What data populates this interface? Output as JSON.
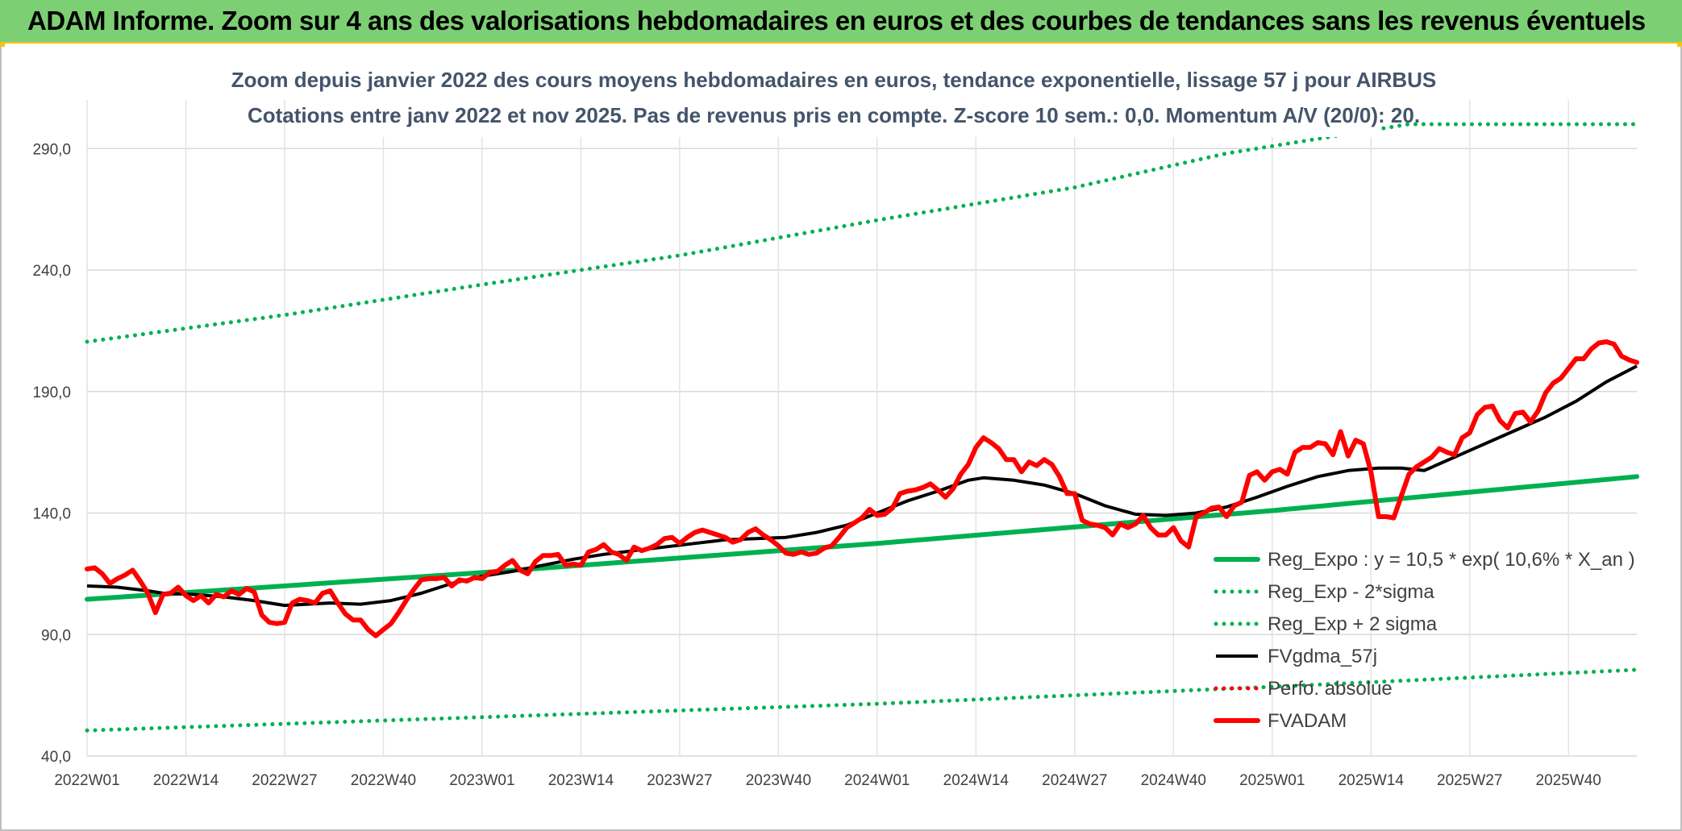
{
  "banner": {
    "title": "ADAM Informe. Zoom sur 4 ans des valorisations hebdomadaires en euros et des courbes de tendances sans les revenus éventuels"
  },
  "colors": {
    "banner_bg": "#7dcf74",
    "banner_border": "#f0c419",
    "regression": "#00b050",
    "band": "#00b050",
    "smoothed": "#000000",
    "perf": "#ff0000",
    "price": "#ff0000",
    "title": "#44546a"
  },
  "chart_data": {
    "type": "line",
    "title_line1": "Zoom depuis janvier 2022 des cours moyens hebdomadaires en euros, tendance exponentielle, lissage 57 j pour AIRBUS",
    "title_line2": "Cotations entre janv 2022 et nov 2025. Pas de revenus pris en compte. Z-score 10 sem.: 0,0. Momentum A/V (20/0): 20.",
    "xlabel": "",
    "ylabel": "",
    "ylim": [
      40,
      300
    ],
    "grid": true,
    "legend_position": "bottom-right",
    "y_ticks": [
      "40,0",
      "90,0",
      "140,0",
      "190,0",
      "240,0",
      "290,0"
    ],
    "x_ticks": [
      {
        "label": "2022W01",
        "week": 0
      },
      {
        "label": "2022W14",
        "week": 13
      },
      {
        "label": "2022W27",
        "week": 26
      },
      {
        "label": "2022W40",
        "week": 39
      },
      {
        "label": "2023W01",
        "week": 52
      },
      {
        "label": "2023W14",
        "week": 65
      },
      {
        "label": "2023W27",
        "week": 78
      },
      {
        "label": "2023W40",
        "week": 91
      },
      {
        "label": "2024W01",
        "week": 104
      },
      {
        "label": "2024W14",
        "week": 117
      },
      {
        "label": "2024W27",
        "week": 130
      },
      {
        "label": "2024W40",
        "week": 143
      },
      {
        "label": "2025W01",
        "week": 156
      },
      {
        "label": "2025W14",
        "week": 169
      },
      {
        "label": "2025W27",
        "week": 182
      },
      {
        "label": "2025W40",
        "week": 195
      }
    ],
    "x_max_week": 204,
    "series": [
      {
        "name": "Reg_Expo : y = 10,5 * exp( 10,6% *  X_an )",
        "style": "solid-thick",
        "color": "#00b050",
        "points": [
          [
            0,
            104.5
          ],
          [
            52,
            115.5
          ],
          [
            104,
            127.5
          ],
          [
            156,
            141.0
          ],
          [
            204,
            155.0
          ]
        ]
      },
      {
        "name": "Reg_Exp - 2*sigma",
        "style": "dotted",
        "color": "#00b050",
        "points": [
          [
            0,
            50.5
          ],
          [
            52,
            56.0
          ],
          [
            104,
            61.5
          ],
          [
            156,
            68.5
          ],
          [
            204,
            75.5
          ]
        ]
      },
      {
        "name": "Reg_Exp + 2 sigma",
        "style": "dotted",
        "color": "#00b050",
        "points": [
          [
            0,
            210.5
          ],
          [
            26,
            221.5
          ],
          [
            52,
            234.0
          ],
          [
            78,
            246.0
          ],
          [
            104,
            260.5
          ],
          [
            130,
            274.0
          ],
          [
            150,
            288.0
          ],
          [
            156,
            291.0
          ],
          [
            174,
            300.0
          ],
          [
            204,
            300.0
          ]
        ]
      },
      {
        "name": "FVgdma_57j",
        "style": "solid",
        "color": "#000000",
        "points": [
          [
            0,
            110
          ],
          [
            4,
            109.5
          ],
          [
            8,
            108
          ],
          [
            10,
            107
          ],
          [
            14,
            106.5
          ],
          [
            18,
            105.5
          ],
          [
            22,
            104
          ],
          [
            26,
            102
          ],
          [
            32,
            103
          ],
          [
            36,
            102.5
          ],
          [
            40,
            104
          ],
          [
            44,
            107
          ],
          [
            48,
            111
          ],
          [
            52,
            114
          ],
          [
            56,
            116
          ],
          [
            60,
            118.5
          ],
          [
            64,
            121
          ],
          [
            68,
            123
          ],
          [
            72,
            124.5
          ],
          [
            76,
            126
          ],
          [
            80,
            127.5
          ],
          [
            84,
            129
          ],
          [
            88,
            129.5
          ],
          [
            92,
            130
          ],
          [
            96,
            132
          ],
          [
            100,
            135
          ],
          [
            104,
            140
          ],
          [
            108,
            145
          ],
          [
            112,
            149
          ],
          [
            116,
            153.5
          ],
          [
            118,
            154.5
          ],
          [
            122,
            153.5
          ],
          [
            126,
            151.5
          ],
          [
            130,
            148
          ],
          [
            134,
            143
          ],
          [
            138,
            139.5
          ],
          [
            142,
            139
          ],
          [
            146,
            140
          ],
          [
            150,
            142.5
          ],
          [
            154,
            146.5
          ],
          [
            158,
            151
          ],
          [
            162,
            155
          ],
          [
            166,
            157.5
          ],
          [
            170,
            158.5
          ],
          [
            173,
            158.5
          ],
          [
            176,
            157.5
          ],
          [
            180,
            163
          ],
          [
            184,
            168.5
          ],
          [
            188,
            174
          ],
          [
            192,
            179.5
          ],
          [
            196,
            186
          ],
          [
            200,
            194
          ],
          [
            204,
            200.5
          ]
        ]
      },
      {
        "name": "Perfo. absolue",
        "style": "dotted",
        "color": "#ff0000",
        "points": []
      },
      {
        "name": "FVADAM",
        "style": "solid-thick",
        "color": "#ff0000",
        "points": [
          [
            0,
            117
          ],
          [
            1,
            117.5
          ],
          [
            2,
            115
          ],
          [
            3,
            111
          ],
          [
            4,
            113
          ],
          [
            5,
            114.5
          ],
          [
            6,
            116.5
          ],
          [
            7,
            112
          ],
          [
            8,
            107
          ],
          [
            9,
            99
          ],
          [
            10,
            106.5
          ],
          [
            11,
            107
          ],
          [
            12,
            109.5
          ],
          [
            13,
            106
          ],
          [
            14,
            104
          ],
          [
            15,
            106
          ],
          [
            16,
            103
          ],
          [
            17,
            106.5
          ],
          [
            18,
            105.5
          ],
          [
            19,
            108
          ],
          [
            20,
            106.5
          ],
          [
            21,
            109
          ],
          [
            22,
            107.5
          ],
          [
            23,
            98
          ],
          [
            24,
            95
          ],
          [
            25,
            94.5
          ],
          [
            26,
            95
          ],
          [
            27,
            103
          ],
          [
            28,
            104.5
          ],
          [
            29,
            104
          ],
          [
            30,
            103
          ],
          [
            31,
            107
          ],
          [
            32,
            108
          ],
          [
            33,
            103
          ],
          [
            34,
            98.5
          ],
          [
            35,
            96
          ],
          [
            36,
            96
          ],
          [
            37,
            92
          ],
          [
            38,
            89.5
          ],
          [
            39,
            92
          ],
          [
            40,
            94.5
          ],
          [
            41,
            99
          ],
          [
            42,
            104
          ],
          [
            43,
            108.5
          ],
          [
            44,
            112.5
          ],
          [
            45,
            113
          ],
          [
            46,
            113
          ],
          [
            47,
            113.5
          ],
          [
            48,
            110
          ],
          [
            49,
            112.5
          ],
          [
            50,
            112
          ],
          [
            51,
            113.5
          ],
          [
            52,
            113
          ],
          [
            53,
            115.5
          ],
          [
            54,
            116
          ],
          [
            55,
            118.5
          ],
          [
            56,
            120.5
          ],
          [
            57,
            116.5
          ],
          [
            58,
            115
          ],
          [
            59,
            120
          ],
          [
            60,
            122.5
          ],
          [
            61,
            122.5
          ],
          [
            62,
            123
          ],
          [
            63,
            118.5
          ],
          [
            64,
            119
          ],
          [
            65,
            118.5
          ],
          [
            66,
            124
          ],
          [
            67,
            125
          ],
          [
            68,
            127
          ],
          [
            69,
            124
          ],
          [
            70,
            123
          ],
          [
            71,
            120.5
          ],
          [
            72,
            126
          ],
          [
            73,
            124.5
          ],
          [
            74,
            125.5
          ],
          [
            75,
            127
          ],
          [
            76,
            129.5
          ],
          [
            77,
            130
          ],
          [
            78,
            127.5
          ],
          [
            79,
            130
          ],
          [
            80,
            132
          ],
          [
            81,
            133
          ],
          [
            82,
            132
          ],
          [
            83,
            131
          ],
          [
            84,
            130
          ],
          [
            85,
            128
          ],
          [
            86,
            129
          ],
          [
            87,
            132
          ],
          [
            88,
            133.5
          ],
          [
            89,
            131
          ],
          [
            90,
            129
          ],
          [
            91,
            126.5
          ],
          [
            92,
            123.5
          ],
          [
            93,
            123
          ],
          [
            94,
            124
          ],
          [
            95,
            123
          ],
          [
            96,
            123.5
          ],
          [
            97,
            125.5
          ],
          [
            98,
            126.5
          ],
          [
            99,
            130
          ],
          [
            100,
            134
          ],
          [
            101,
            136
          ],
          [
            102,
            138
          ],
          [
            103,
            141.5
          ],
          [
            104,
            139
          ],
          [
            105,
            139.5
          ],
          [
            106,
            142
          ],
          [
            107,
            148
          ],
          [
            108,
            149
          ],
          [
            109,
            149.5
          ],
          [
            110,
            150.5
          ],
          [
            111,
            152
          ],
          [
            112,
            149.5
          ],
          [
            113,
            146.5
          ],
          [
            114,
            150
          ],
          [
            115,
            156
          ],
          [
            116,
            160
          ],
          [
            117,
            167
          ],
          [
            118,
            171
          ],
          [
            119,
            169
          ],
          [
            120,
            166.5
          ],
          [
            121,
            162
          ],
          [
            122,
            162
          ],
          [
            123,
            157
          ],
          [
            124,
            161
          ],
          [
            125,
            159.5
          ],
          [
            126,
            162
          ],
          [
            127,
            160
          ],
          [
            128,
            155
          ],
          [
            129,
            148
          ],
          [
            130,
            148
          ],
          [
            131,
            137
          ],
          [
            132,
            135.5
          ],
          [
            133,
            135
          ],
          [
            134,
            134
          ],
          [
            135,
            131
          ],
          [
            136,
            135.5
          ],
          [
            137,
            134
          ],
          [
            138,
            135.5
          ],
          [
            139,
            139
          ],
          [
            140,
            134
          ],
          [
            141,
            131
          ],
          [
            142,
            131
          ],
          [
            143,
            134
          ],
          [
            144,
            128.5
          ],
          [
            145,
            126
          ],
          [
            146,
            138.5
          ],
          [
            147,
            140
          ],
          [
            148,
            142
          ],
          [
            149,
            142.5
          ],
          [
            150,
            138.5
          ],
          [
            151,
            143
          ],
          [
            152,
            144.5
          ],
          [
            153,
            155.5
          ],
          [
            154,
            157
          ],
          [
            155,
            153.5
          ],
          [
            156,
            157
          ],
          [
            157,
            158
          ],
          [
            158,
            156
          ],
          [
            159,
            165
          ],
          [
            160,
            167
          ],
          [
            161,
            167
          ],
          [
            162,
            169
          ],
          [
            163,
            168.5
          ],
          [
            164,
            164
          ],
          [
            165,
            173.5
          ],
          [
            166,
            163.5
          ],
          [
            167,
            170
          ],
          [
            168,
            168.5
          ],
          [
            169,
            157
          ],
          [
            170,
            138.5
          ],
          [
            171,
            138.5
          ],
          [
            172,
            138
          ],
          [
            173,
            147
          ],
          [
            174,
            156
          ],
          [
            175,
            159
          ],
          [
            176,
            161
          ],
          [
            177,
            163
          ],
          [
            178,
            166.5
          ],
          [
            179,
            165
          ],
          [
            180,
            164
          ],
          [
            181,
            171
          ],
          [
            182,
            173
          ],
          [
            183,
            180.5
          ],
          [
            184,
            183.5
          ],
          [
            185,
            184
          ],
          [
            186,
            178
          ],
          [
            187,
            175
          ],
          [
            188,
            181
          ],
          [
            189,
            181.5
          ],
          [
            190,
            177.5
          ],
          [
            191,
            182
          ],
          [
            192,
            189.5
          ],
          [
            193,
            193.5
          ],
          [
            194,
            195.5
          ],
          [
            195,
            199.5
          ],
          [
            196,
            203.5
          ],
          [
            197,
            203.5
          ],
          [
            198,
            207.5
          ],
          [
            199,
            210
          ],
          [
            200,
            210.5
          ],
          [
            201,
            209.5
          ],
          [
            202,
            204.5
          ],
          [
            203,
            203
          ],
          [
            204,
            202
          ]
        ]
      }
    ]
  }
}
